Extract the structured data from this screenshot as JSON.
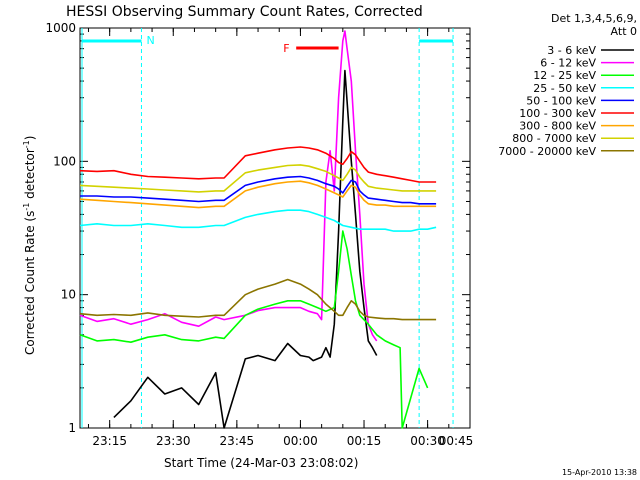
{
  "chart_data": {
    "type": "line",
    "title": "HESSI Observing Summary Count Rates, Corrected",
    "xlabel": "Start Time (24-Mar-03 23:08:02)",
    "ylabel_prefix": "Corrected Count Rate (s",
    "ylabel_sup1": "-1",
    "ylabel_mid": " detector",
    "ylabel_sup2": "-1",
    "ylabel_suffix": ")",
    "yscale": "log",
    "ylim": [
      1,
      1000
    ],
    "xlim_minutes": [
      -52,
      40
    ],
    "y_ticks": [
      {
        "value": 1,
        "label": "1"
      },
      {
        "value": 10,
        "label": "10"
      },
      {
        "value": 100,
        "label": "100"
      },
      {
        "value": 1000,
        "label": "1000"
      }
    ],
    "x_ticks": [
      {
        "minute": -45,
        "label": "23:15"
      },
      {
        "minute": -30,
        "label": "23:30"
      },
      {
        "minute": -15,
        "label": "23:45"
      },
      {
        "minute": 0,
        "label": "00:00"
      },
      {
        "minute": 15,
        "label": "00:15"
      },
      {
        "minute": 30,
        "label": "00:30"
      },
      {
        "minute": 45,
        "label": "00:45"
      }
    ],
    "legend_header": [
      "Det 1,3,4,5,6,9,",
      "Att 0"
    ],
    "legend_placement": "right",
    "timestamp": "15-Apr-2010 13:38",
    "annotations": {
      "night_label": "N",
      "night_intervals": [
        [
          -52,
          -37.5
        ],
        [
          28,
          36
        ]
      ],
      "flare_label": "F",
      "flare_interval": [
        -1,
        9
      ]
    },
    "series": [
      {
        "name": "3 - 6 keV",
        "color": "#000000",
        "points": [
          [
            -44,
            1.2
          ],
          [
            -40,
            1.6
          ],
          [
            -36,
            2.4
          ],
          [
            -32,
            1.8
          ],
          [
            -28,
            2.0
          ],
          [
            -24,
            1.5
          ],
          [
            -20,
            2.6
          ],
          [
            -18,
            1.0
          ],
          [
            -13,
            3.3
          ],
          [
            -10,
            3.5
          ],
          [
            -6,
            3.2
          ],
          [
            -3,
            4.3
          ],
          [
            0,
            3.5
          ],
          [
            2,
            3.4
          ],
          [
            3,
            3.2
          ],
          [
            5,
            3.4
          ],
          [
            6,
            4.0
          ],
          [
            7,
            3.4
          ],
          [
            8,
            6.0
          ],
          [
            9,
            30
          ],
          [
            10,
            200
          ],
          [
            10.5,
            480
          ],
          [
            11,
            280
          ],
          [
            12,
            100
          ],
          [
            13,
            40
          ],
          [
            14,
            15
          ],
          [
            15,
            8
          ],
          [
            16,
            4.5
          ],
          [
            17,
            4
          ],
          [
            18,
            3.5
          ]
        ]
      },
      {
        "name": "6 - 12 keV",
        "color": "#ff00ff",
        "points": [
          [
            -52,
            7
          ],
          [
            -48,
            6.3
          ],
          [
            -44,
            6.6
          ],
          [
            -40,
            6.0
          ],
          [
            -36,
            6.5
          ],
          [
            -32,
            7.2
          ],
          [
            -28,
            6.2
          ],
          [
            -24,
            5.8
          ],
          [
            -20,
            6.8
          ],
          [
            -18,
            6.5
          ],
          [
            -13,
            7
          ],
          [
            -10,
            7.6
          ],
          [
            -6,
            8.0
          ],
          [
            -3,
            8.0
          ],
          [
            0,
            8.0
          ],
          [
            2,
            7.5
          ],
          [
            4,
            7.2
          ],
          [
            5,
            6.5
          ],
          [
            6,
            70
          ],
          [
            7,
            120
          ],
          [
            8,
            60
          ],
          [
            9,
            300
          ],
          [
            10,
            800
          ],
          [
            10.5,
            950
          ],
          [
            11,
            700
          ],
          [
            12,
            400
          ],
          [
            13,
            120
          ],
          [
            14,
            40
          ],
          [
            15,
            12
          ],
          [
            16,
            6
          ],
          [
            17,
            5
          ],
          [
            18,
            4.5
          ]
        ]
      },
      {
        "name": "12 - 25 keV",
        "color": "#00ff00",
        "points": [
          [
            -52,
            5
          ],
          [
            -48,
            4.5
          ],
          [
            -44,
            4.6
          ],
          [
            -40,
            4.4
          ],
          [
            -36,
            4.8
          ],
          [
            -32,
            5.0
          ],
          [
            -28,
            4.6
          ],
          [
            -24,
            4.5
          ],
          [
            -20,
            4.8
          ],
          [
            -18,
            4.7
          ],
          [
            -13,
            7
          ],
          [
            -10,
            7.8
          ],
          [
            -6,
            8.5
          ],
          [
            -3,
            9.0
          ],
          [
            0,
            9.0
          ],
          [
            2,
            8.5
          ],
          [
            4,
            8.0
          ],
          [
            6,
            7.5
          ],
          [
            8,
            8
          ],
          [
            9,
            15
          ],
          [
            10,
            30
          ],
          [
            11,
            22
          ],
          [
            12,
            14
          ],
          [
            13,
            9
          ],
          [
            14,
            7
          ],
          [
            16,
            6
          ],
          [
            18,
            5
          ],
          [
            20,
            4.5
          ],
          [
            22,
            4.2
          ],
          [
            23.5,
            4.0
          ],
          [
            24,
            1.0
          ],
          [
            28,
            2.8
          ],
          [
            30,
            2.0
          ]
        ]
      },
      {
        "name": "25 - 50 keV",
        "color": "#00ffff",
        "points": [
          [
            -52,
            33
          ],
          [
            -48,
            34
          ],
          [
            -44,
            33
          ],
          [
            -40,
            33
          ],
          [
            -36,
            34
          ],
          [
            -32,
            33
          ],
          [
            -28,
            32
          ],
          [
            -24,
            32
          ],
          [
            -20,
            33
          ],
          [
            -18,
            33
          ],
          [
            -13,
            38
          ],
          [
            -10,
            40
          ],
          [
            -6,
            42
          ],
          [
            -3,
            43
          ],
          [
            0,
            43
          ],
          [
            2,
            42
          ],
          [
            4,
            40
          ],
          [
            6,
            38
          ],
          [
            8,
            36
          ],
          [
            10,
            33
          ],
          [
            12,
            32
          ],
          [
            14,
            31
          ],
          [
            16,
            31
          ],
          [
            18,
            31
          ],
          [
            20,
            31
          ],
          [
            22,
            30
          ],
          [
            24,
            30
          ],
          [
            26,
            30
          ],
          [
            28,
            31
          ],
          [
            30,
            31
          ],
          [
            32,
            32
          ]
        ]
      },
      {
        "name": "50 - 100 keV",
        "color": "#0000ff",
        "points": [
          [
            -52,
            55
          ],
          [
            -48,
            55
          ],
          [
            -44,
            54
          ],
          [
            -40,
            54
          ],
          [
            -36,
            53
          ],
          [
            -32,
            52
          ],
          [
            -28,
            51
          ],
          [
            -24,
            50
          ],
          [
            -20,
            51
          ],
          [
            -18,
            51
          ],
          [
            -13,
            66
          ],
          [
            -10,
            70
          ],
          [
            -6,
            74
          ],
          [
            -3,
            76
          ],
          [
            0,
            77
          ],
          [
            2,
            75
          ],
          [
            4,
            72
          ],
          [
            6,
            68
          ],
          [
            8,
            65
          ],
          [
            9,
            62
          ],
          [
            10,
            58
          ],
          [
            11,
            65
          ],
          [
            12,
            72
          ],
          [
            13,
            70
          ],
          [
            14,
            60
          ],
          [
            15,
            56
          ],
          [
            16,
            53
          ],
          [
            18,
            52
          ],
          [
            20,
            51
          ],
          [
            22,
            50
          ],
          [
            24,
            49
          ],
          [
            26,
            49
          ],
          [
            28,
            48
          ],
          [
            30,
            48
          ],
          [
            32,
            48
          ]
        ]
      },
      {
        "name": "100 - 300 keV",
        "color": "#ff0000",
        "points": [
          [
            -52,
            85
          ],
          [
            -48,
            84
          ],
          [
            -44,
            85
          ],
          [
            -40,
            80
          ],
          [
            -36,
            77
          ],
          [
            -32,
            76
          ],
          [
            -28,
            75
          ],
          [
            -24,
            74
          ],
          [
            -20,
            75
          ],
          [
            -18,
            75
          ],
          [
            -13,
            110
          ],
          [
            -10,
            115
          ],
          [
            -6,
            122
          ],
          [
            -3,
            126
          ],
          [
            0,
            128
          ],
          [
            2,
            126
          ],
          [
            4,
            122
          ],
          [
            6,
            115
          ],
          [
            8,
            105
          ],
          [
            9,
            98
          ],
          [
            10,
            95
          ],
          [
            11,
            105
          ],
          [
            12,
            118
          ],
          [
            13,
            112
          ],
          [
            14,
            100
          ],
          [
            15,
            90
          ],
          [
            16,
            83
          ],
          [
            18,
            80
          ],
          [
            20,
            78
          ],
          [
            22,
            76
          ],
          [
            24,
            74
          ],
          [
            26,
            72
          ],
          [
            28,
            70
          ],
          [
            30,
            70
          ],
          [
            32,
            70
          ]
        ]
      },
      {
        "name": "300 - 800 keV",
        "color": "#ffa500",
        "points": [
          [
            -52,
            52
          ],
          [
            -48,
            51
          ],
          [
            -44,
            50
          ],
          [
            -40,
            49
          ],
          [
            -36,
            48
          ],
          [
            -32,
            47
          ],
          [
            -28,
            46
          ],
          [
            -24,
            45
          ],
          [
            -20,
            46
          ],
          [
            -18,
            46
          ],
          [
            -13,
            60
          ],
          [
            -10,
            64
          ],
          [
            -6,
            68
          ],
          [
            -3,
            70
          ],
          [
            0,
            71
          ],
          [
            2,
            69
          ],
          [
            4,
            66
          ],
          [
            6,
            62
          ],
          [
            8,
            58
          ],
          [
            9,
            56
          ],
          [
            10,
            54
          ],
          [
            11,
            60
          ],
          [
            12,
            66
          ],
          [
            13,
            64
          ],
          [
            14,
            56
          ],
          [
            15,
            51
          ],
          [
            16,
            48
          ],
          [
            18,
            47
          ],
          [
            20,
            47
          ],
          [
            22,
            46
          ],
          [
            24,
            46
          ],
          [
            26,
            46
          ],
          [
            28,
            46
          ],
          [
            30,
            46
          ],
          [
            32,
            46
          ]
        ]
      },
      {
        "name": "800 - 7000 keV",
        "color": "#d2d200",
        "points": [
          [
            -52,
            66
          ],
          [
            -48,
            65
          ],
          [
            -44,
            64
          ],
          [
            -40,
            63
          ],
          [
            -36,
            62
          ],
          [
            -32,
            61
          ],
          [
            -28,
            60
          ],
          [
            -24,
            59
          ],
          [
            -20,
            60
          ],
          [
            -18,
            60
          ],
          [
            -13,
            82
          ],
          [
            -10,
            86
          ],
          [
            -6,
            90
          ],
          [
            -3,
            93
          ],
          [
            0,
            94
          ],
          [
            2,
            92
          ],
          [
            4,
            88
          ],
          [
            6,
            84
          ],
          [
            8,
            78
          ],
          [
            9,
            75
          ],
          [
            10,
            72
          ],
          [
            11,
            80
          ],
          [
            12,
            90
          ],
          [
            13,
            86
          ],
          [
            14,
            76
          ],
          [
            15,
            70
          ],
          [
            16,
            65
          ],
          [
            18,
            63
          ],
          [
            20,
            62
          ],
          [
            22,
            61
          ],
          [
            24,
            60
          ],
          [
            26,
            60
          ],
          [
            28,
            60
          ],
          [
            30,
            60
          ],
          [
            32,
            60
          ]
        ]
      },
      {
        "name": "7000 - 20000 keV",
        "color": "#8b7500",
        "points": [
          [
            -52,
            7.2
          ],
          [
            -48,
            7.0
          ],
          [
            -44,
            7.1
          ],
          [
            -40,
            7.0
          ],
          [
            -36,
            7.3
          ],
          [
            -32,
            7.0
          ],
          [
            -28,
            6.9
          ],
          [
            -24,
            6.8
          ],
          [
            -20,
            7.0
          ],
          [
            -18,
            7.0
          ],
          [
            -13,
            10
          ],
          [
            -10,
            11
          ],
          [
            -6,
            12
          ],
          [
            -3,
            13
          ],
          [
            0,
            12
          ],
          [
            2,
            11
          ],
          [
            4,
            10
          ],
          [
            6,
            8.5
          ],
          [
            8,
            7.5
          ],
          [
            9,
            7.0
          ],
          [
            10,
            7.0
          ],
          [
            11,
            8.0
          ],
          [
            12,
            9.0
          ],
          [
            13,
            8.5
          ],
          [
            14,
            7.5
          ],
          [
            15,
            7
          ],
          [
            16,
            6.8
          ],
          [
            18,
            6.7
          ],
          [
            20,
            6.6
          ],
          [
            22,
            6.6
          ],
          [
            24,
            6.5
          ],
          [
            26,
            6.5
          ],
          [
            28,
            6.5
          ],
          [
            30,
            6.5
          ],
          [
            32,
            6.5
          ]
        ]
      }
    ]
  }
}
